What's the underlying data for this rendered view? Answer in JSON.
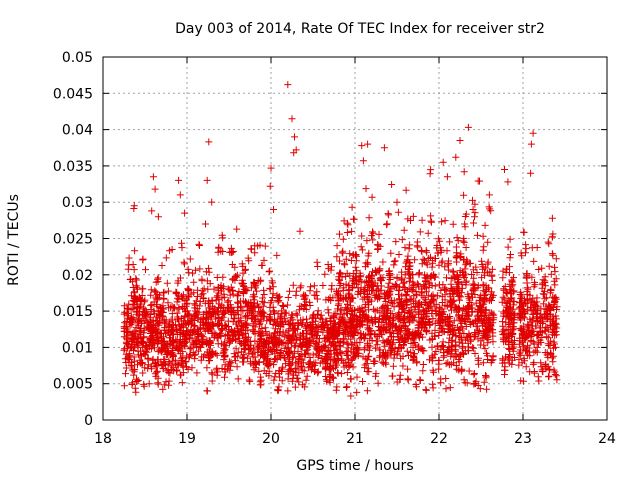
{
  "chart_data": {
    "type": "scatter",
    "title": "Day 003 of 2014, Rate Of TEC Index for receiver str2",
    "xlabel": "GPS time / hours",
    "ylabel": "ROTI / TECUs",
    "xlim": [
      18,
      24
    ],
    "ylim": [
      0,
      0.05
    ],
    "x_ticks": [
      "18",
      "19",
      "20",
      "21",
      "22",
      "23",
      "24"
    ],
    "y_ticks": [
      "0",
      "0.005",
      "0.01",
      "0.015",
      "0.02",
      "0.025",
      "0.03",
      "0.035",
      "0.04",
      "0.045",
      "0.05"
    ],
    "grid": true,
    "marker": "plus",
    "color": "#e00000",
    "series": [
      {
        "name": "str2",
        "segments": [
          {
            "x0": 18.25,
            "x1": 18.95,
            "base": 0.0115,
            "spread": 0.0045,
            "count": 420
          },
          {
            "x0": 18.95,
            "x1": 19.9,
            "base": 0.0125,
            "spread": 0.005,
            "count": 520
          },
          {
            "x0": 19.9,
            "x1": 20.8,
            "base": 0.0105,
            "spread": 0.0045,
            "count": 480
          },
          {
            "x0": 20.8,
            "x1": 21.6,
            "base": 0.0135,
            "spread": 0.006,
            "count": 520
          },
          {
            "x0": 21.6,
            "x1": 22.65,
            "base": 0.0145,
            "spread": 0.0065,
            "count": 640
          },
          {
            "x0": 22.75,
            "x1": 22.9,
            "base": 0.013,
            "spread": 0.005,
            "count": 110
          },
          {
            "x0": 22.95,
            "x1": 23.4,
            "base": 0.013,
            "spread": 0.005,
            "count": 260
          }
        ],
        "highlights": [
          [
            18.6,
            0.0335
          ],
          [
            18.62,
            0.0318
          ],
          [
            18.58,
            0.0288
          ],
          [
            18.66,
            0.028
          ],
          [
            18.9,
            0.033
          ],
          [
            18.92,
            0.031
          ],
          [
            19.26,
            0.0383
          ],
          [
            19.24,
            0.033
          ],
          [
            19.22,
            0.027
          ],
          [
            20.0,
            0.0347
          ],
          [
            19.99,
            0.0322
          ],
          [
            20.03,
            0.029
          ],
          [
            20.2,
            0.0462
          ],
          [
            20.25,
            0.0415
          ],
          [
            20.28,
            0.039
          ],
          [
            20.3,
            0.0372
          ],
          [
            20.27,
            0.0368
          ],
          [
            21.08,
            0.0378
          ],
          [
            21.15,
            0.038
          ],
          [
            21.1,
            0.0357
          ],
          [
            21.35,
            0.0375
          ],
          [
            21.5,
            0.03
          ],
          [
            22.05,
            0.0355
          ],
          [
            22.1,
            0.0335
          ],
          [
            22.2,
            0.0362
          ],
          [
            22.25,
            0.0385
          ],
          [
            22.35,
            0.0403
          ],
          [
            22.3,
            0.0342
          ],
          [
            22.6,
            0.031
          ],
          [
            22.78,
            0.0345
          ],
          [
            22.82,
            0.0328
          ],
          [
            23.12,
            0.0395
          ],
          [
            23.1,
            0.038
          ],
          [
            23.09,
            0.034
          ],
          [
            23.35,
            0.0278
          ],
          [
            23.3,
            0.0245
          ],
          [
            18.4,
            0.0053
          ],
          [
            18.55,
            0.005
          ],
          [
            20.95,
            0.0033
          ],
          [
            21.02,
            0.0038
          ],
          [
            23.3,
            0.0105
          ]
        ]
      }
    ]
  }
}
